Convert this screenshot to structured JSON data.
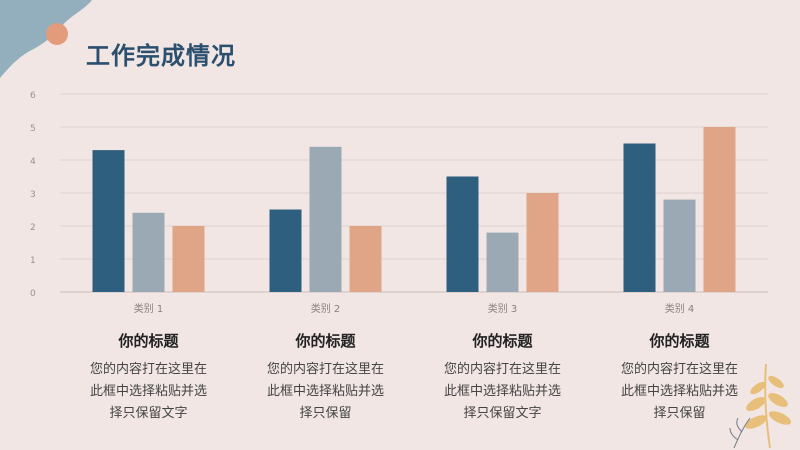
{
  "title": "工作完成情况",
  "chart_data": {
    "type": "bar",
    "categories": [
      "类别 1",
      "类别 2",
      "类别 3",
      "类别 4"
    ],
    "series": [
      {
        "values": [
          4.3,
          2.5,
          3.5,
          4.5
        ]
      },
      {
        "values": [
          2.4,
          4.4,
          1.8,
          2.8
        ]
      },
      {
        "values": [
          2.0,
          2.0,
          3.0,
          5.0
        ]
      }
    ],
    "colors": [
      "#2e5f7e",
      "#9aa9b3",
      "#e0a586"
    ],
    "yticks": [
      "0",
      "1",
      "2",
      "3",
      "4",
      "5",
      "6"
    ],
    "ylim": [
      0,
      6
    ],
    "grid": true,
    "xlabel": "",
    "ylabel": ""
  },
  "captions": [
    {
      "title": "你的标题",
      "desc": [
        "您的内容打在这里在",
        "此框中选择粘贴并选",
        "择只保留文字"
      ]
    },
    {
      "title": "你的标题",
      "desc": [
        "您的内容打在这里在",
        "此框中选择粘贴并选",
        "择只保留"
      ]
    },
    {
      "title": "你的标题",
      "desc": [
        "您的内容打在这里在",
        "此框中选择粘贴并选",
        "择只保留文字"
      ]
    },
    {
      "title": "你的标题",
      "desc": [
        "您的内容打在这里在",
        "此框中选择粘贴并选",
        "择只保留"
      ]
    }
  ],
  "decor": {
    "blob_color": "#93aebd",
    "dot_color": "#e49b7c",
    "leaf_color": "#e8bf7a"
  }
}
